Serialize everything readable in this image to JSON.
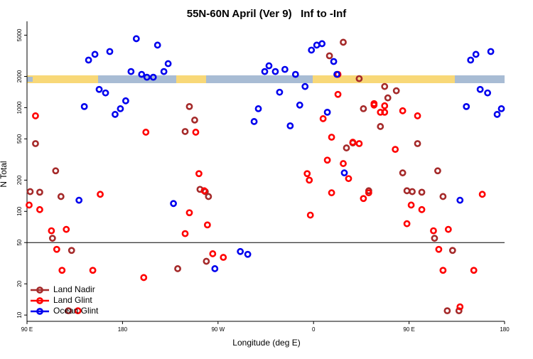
{
  "chart_data": {
    "type": "scatter",
    "title": "55N-60N April (Ver 9)   Inf to -Inf",
    "x_label": "Longitude (deg E)",
    "y_label": "N Total",
    "ylog": true,
    "xlim": [
      90,
      540
    ],
    "ylim": [
      8.7,
      6800
    ],
    "xticks": [
      {
        "value": 90,
        "label": "90 E"
      },
      {
        "value": 180,
        "label": "180"
      },
      {
        "value": 270,
        "label": "90 W"
      },
      {
        "value": 360,
        "label": "0"
      },
      {
        "value": 450,
        "label": "90 E"
      },
      {
        "value": 540,
        "label": "180"
      }
    ],
    "yticks": [
      10,
      20,
      50,
      100,
      200,
      500,
      1000,
      2000,
      5000
    ],
    "hline": 50,
    "legend": "bottom-left",
    "series": [
      {
        "name": "Land Nadir",
        "color": "#a52a2a",
        "x": [
          93,
          98,
          102,
          117,
          122,
          114,
          132,
          129,
          232,
          239,
          243,
          248,
          253,
          258,
          261,
          259,
          375,
          388,
          403,
          391,
          397,
          407,
          412,
          423,
          427,
          430,
          438,
          444,
          448,
          453,
          458,
          462,
          477,
          482,
          474,
          491,
          486,
          497
        ],
        "values": [
          155,
          450,
          153,
          246,
          139,
          55,
          42,
          11,
          28,
          589,
          1025,
          759,
          163,
          155,
          139,
          33,
          3163,
          4273,
          1905,
          409,
          457,
          977,
          158,
          658,
          1600,
          1242,
          1455,
          235,
          158,
          155,
          450,
          153,
          246,
          139,
          55,
          42,
          11,
          11
        ]
      },
      {
        "name": "Land Glint",
        "color": "#ff0000",
        "x": [
          92,
          98,
          102,
          113,
          118,
          123,
          127,
          138,
          152,
          159,
          200,
          202,
          239,
          243,
          249,
          252,
          257,
          260,
          265,
          275,
          354,
          356,
          357,
          369,
          373,
          377,
          377,
          383,
          383,
          388,
          393,
          397,
          403,
          407,
          412,
          417,
          417,
          423,
          427,
          427,
          437,
          444,
          448,
          452,
          458,
          462,
          473,
          478,
          482,
          487,
          498,
          511,
          519
        ],
        "values": [
          115,
          834,
          104,
          65,
          43,
          27,
          67,
          11,
          27,
          146,
          23,
          580,
          61,
          97,
          580,
          231,
          158,
          74,
          39,
          36,
          231,
          200,
          92,
          783,
          312,
          519,
          151,
          2094,
          1343,
          289,
          207,
          464,
          450,
          133,
          151,
          1059,
          1094,
          903,
          1042,
          903,
          396,
          933,
          76,
          115,
          834,
          104,
          65,
          43,
          27,
          67,
          12,
          27,
          146
        ]
      },
      {
        "name": "Ocean Glint",
        "color": "#0000ee",
        "x": [
          139,
          144,
          148,
          154,
          158,
          164,
          168,
          173,
          178,
          183,
          188,
          193,
          198,
          203,
          209,
          213,
          219,
          223,
          228,
          267,
          291,
          298,
          304,
          308,
          314,
          318,
          324,
          328,
          333,
          338,
          343,
          347,
          352,
          358,
          363,
          368,
          373,
          379,
          382,
          389,
          504,
          508,
          513,
          517,
          524,
          527,
          533,
          537,
          498
        ],
        "values": [
          128,
          1025,
          2877,
          3266,
          1500,
          1387,
          3478,
          861,
          977,
          1164,
          2230,
          4624,
          2094,
          1965,
          1965,
          4010,
          2230,
          2657,
          119,
          28,
          41,
          38.5,
          735,
          977,
          2230,
          2533,
          2230,
          1409,
          2339,
          668,
          2094,
          1059,
          1600,
          3590,
          4010,
          4140,
          903,
          2787,
          2094,
          235,
          1025,
          2877,
          3266,
          1500,
          1387,
          3478,
          861,
          977,
          128
        ]
      }
    ]
  }
}
